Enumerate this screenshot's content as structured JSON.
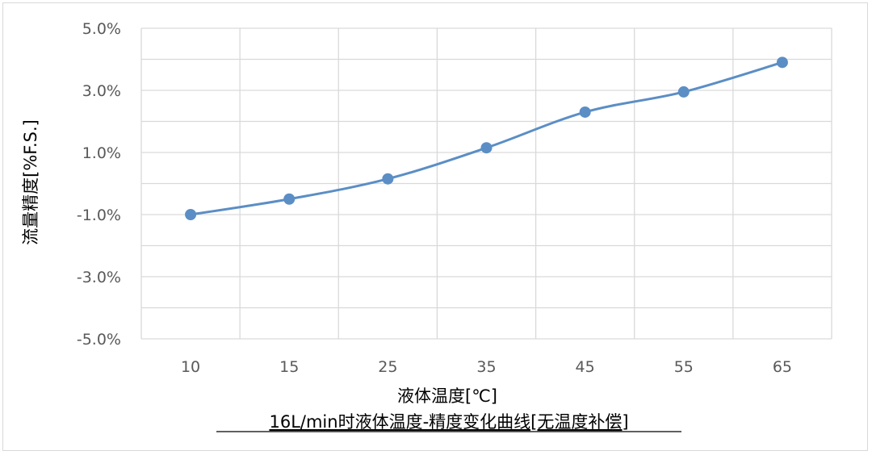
{
  "chart_data": {
    "type": "line",
    "title": "16L/min时液体温度-精度变化曲线[无温度补偿]",
    "xlabel": "液体温度[℃]",
    "ylabel": "流量精度[%F.S.]",
    "categories": [
      "10",
      "15",
      "25",
      "35",
      "45",
      "55",
      "65"
    ],
    "series": [
      {
        "values": [
          -1.0,
          -0.5,
          0.15,
          1.15,
          2.3,
          2.95,
          3.9
        ]
      }
    ],
    "ylim": [
      -5.0,
      5.0
    ],
    "yticks": [
      "5.0%",
      "3.0%",
      "1.0%",
      "-1.0%",
      "-3.0%",
      "-5.0%"
    ],
    "grid": true,
    "smooth": true,
    "colors": {
      "series": "#5b8ec5",
      "grid": "#d9d9d9"
    }
  }
}
